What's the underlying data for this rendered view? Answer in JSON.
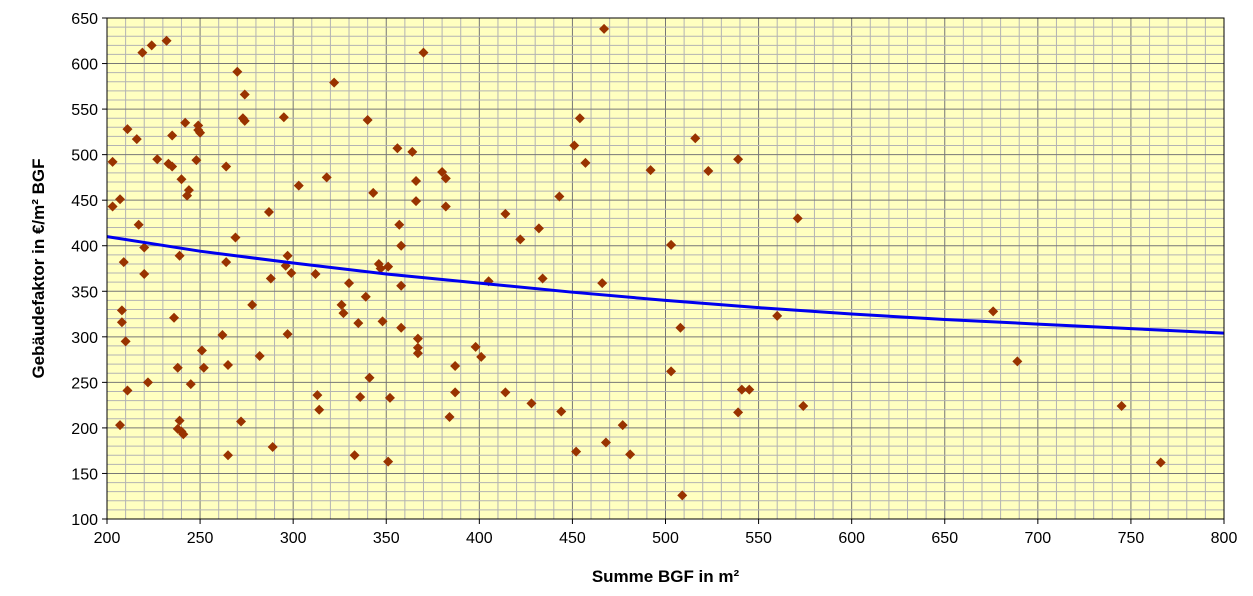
{
  "chart_data": {
    "type": "scatter",
    "xlabel": "Summe BGF in m²",
    "ylabel": "Gebäudefaktor in €/m² BGF",
    "xlim": [
      200,
      800
    ],
    "ylim": [
      100,
      650
    ],
    "x_ticks": [
      "200",
      "250",
      "300",
      "350",
      "400",
      "450",
      "500",
      "550",
      "600",
      "650",
      "700",
      "750",
      "800"
    ],
    "y_ticks": [
      "100",
      "150",
      "200",
      "250",
      "300",
      "350",
      "400",
      "450",
      "500",
      "550",
      "600",
      "650"
    ],
    "grid": true,
    "plot_background": "#ffffc0",
    "marker_color": "#993300",
    "trend_color": "#0000ee",
    "trend": [
      {
        "x": 200,
        "y": 410
      },
      {
        "x": 250,
        "y": 394
      },
      {
        "x": 300,
        "y": 381
      },
      {
        "x": 350,
        "y": 369
      },
      {
        "x": 400,
        "y": 359
      },
      {
        "x": 450,
        "y": 349
      },
      {
        "x": 500,
        "y": 340
      },
      {
        "x": 550,
        "y": 332
      },
      {
        "x": 600,
        "y": 325
      },
      {
        "x": 650,
        "y": 319
      },
      {
        "x": 700,
        "y": 314
      },
      {
        "x": 750,
        "y": 309
      },
      {
        "x": 800,
        "y": 304
      }
    ],
    "points": [
      {
        "x": 203,
        "y": 492
      },
      {
        "x": 203,
        "y": 443
      },
      {
        "x": 207,
        "y": 451
      },
      {
        "x": 207,
        "y": 203
      },
      {
        "x": 208,
        "y": 329
      },
      {
        "x": 208,
        "y": 316
      },
      {
        "x": 209,
        "y": 382
      },
      {
        "x": 210,
        "y": 295
      },
      {
        "x": 211,
        "y": 528
      },
      {
        "x": 211,
        "y": 241
      },
      {
        "x": 216,
        "y": 517
      },
      {
        "x": 217,
        "y": 423
      },
      {
        "x": 219,
        "y": 612
      },
      {
        "x": 220,
        "y": 398
      },
      {
        "x": 220,
        "y": 369
      },
      {
        "x": 222,
        "y": 250
      },
      {
        "x": 224,
        "y": 620
      },
      {
        "x": 227,
        "y": 495
      },
      {
        "x": 232,
        "y": 625
      },
      {
        "x": 233,
        "y": 490
      },
      {
        "x": 235,
        "y": 521
      },
      {
        "x": 235,
        "y": 487
      },
      {
        "x": 236,
        "y": 321
      },
      {
        "x": 238,
        "y": 266
      },
      {
        "x": 238,
        "y": 199
      },
      {
        "x": 239,
        "y": 389
      },
      {
        "x": 239,
        "y": 208
      },
      {
        "x": 240,
        "y": 473
      },
      {
        "x": 240,
        "y": 196
      },
      {
        "x": 241,
        "y": 193
      },
      {
        "x": 242,
        "y": 535
      },
      {
        "x": 243,
        "y": 455
      },
      {
        "x": 244,
        "y": 461
      },
      {
        "x": 245,
        "y": 248
      },
      {
        "x": 248,
        "y": 494
      },
      {
        "x": 249,
        "y": 532
      },
      {
        "x": 249,
        "y": 527
      },
      {
        "x": 250,
        "y": 524
      },
      {
        "x": 251,
        "y": 285
      },
      {
        "x": 252,
        "y": 266
      },
      {
        "x": 262,
        "y": 302
      },
      {
        "x": 264,
        "y": 487
      },
      {
        "x": 264,
        "y": 382
      },
      {
        "x": 265,
        "y": 269
      },
      {
        "x": 265,
        "y": 170
      },
      {
        "x": 269,
        "y": 409
      },
      {
        "x": 270,
        "y": 591
      },
      {
        "x": 272,
        "y": 207
      },
      {
        "x": 273,
        "y": 540
      },
      {
        "x": 274,
        "y": 537
      },
      {
        "x": 274,
        "y": 566
      },
      {
        "x": 278,
        "y": 335
      },
      {
        "x": 282,
        "y": 279
      },
      {
        "x": 287,
        "y": 437
      },
      {
        "x": 288,
        "y": 364
      },
      {
        "x": 289,
        "y": 179
      },
      {
        "x": 295,
        "y": 541
      },
      {
        "x": 296,
        "y": 378
      },
      {
        "x": 297,
        "y": 389
      },
      {
        "x": 297,
        "y": 303
      },
      {
        "x": 299,
        "y": 370
      },
      {
        "x": 303,
        "y": 466
      },
      {
        "x": 312,
        "y": 369
      },
      {
        "x": 313,
        "y": 236
      },
      {
        "x": 314,
        "y": 220
      },
      {
        "x": 318,
        "y": 475
      },
      {
        "x": 322,
        "y": 579
      },
      {
        "x": 326,
        "y": 335
      },
      {
        "x": 327,
        "y": 326
      },
      {
        "x": 330,
        "y": 359
      },
      {
        "x": 333,
        "y": 170
      },
      {
        "x": 335,
        "y": 315
      },
      {
        "x": 336,
        "y": 234
      },
      {
        "x": 339,
        "y": 344
      },
      {
        "x": 340,
        "y": 538
      },
      {
        "x": 341,
        "y": 255
      },
      {
        "x": 343,
        "y": 458
      },
      {
        "x": 346,
        "y": 380
      },
      {
        "x": 347,
        "y": 375
      },
      {
        "x": 348,
        "y": 317
      },
      {
        "x": 351,
        "y": 377
      },
      {
        "x": 351,
        "y": 163
      },
      {
        "x": 352,
        "y": 233
      },
      {
        "x": 356,
        "y": 507
      },
      {
        "x": 357,
        "y": 423
      },
      {
        "x": 358,
        "y": 400
      },
      {
        "x": 358,
        "y": 356
      },
      {
        "x": 358,
        "y": 310
      },
      {
        "x": 364,
        "y": 503
      },
      {
        "x": 366,
        "y": 471
      },
      {
        "x": 366,
        "y": 449
      },
      {
        "x": 367,
        "y": 298
      },
      {
        "x": 367,
        "y": 288
      },
      {
        "x": 367,
        "y": 282
      },
      {
        "x": 370,
        "y": 612
      },
      {
        "x": 380,
        "y": 481
      },
      {
        "x": 382,
        "y": 474
      },
      {
        "x": 382,
        "y": 443
      },
      {
        "x": 384,
        "y": 212
      },
      {
        "x": 387,
        "y": 268
      },
      {
        "x": 387,
        "y": 239
      },
      {
        "x": 398,
        "y": 289
      },
      {
        "x": 401,
        "y": 278
      },
      {
        "x": 405,
        "y": 361
      },
      {
        "x": 414,
        "y": 435
      },
      {
        "x": 414,
        "y": 239
      },
      {
        "x": 422,
        "y": 407
      },
      {
        "x": 428,
        "y": 227
      },
      {
        "x": 432,
        "y": 419
      },
      {
        "x": 434,
        "y": 364
      },
      {
        "x": 443,
        "y": 454
      },
      {
        "x": 444,
        "y": 218
      },
      {
        "x": 451,
        "y": 510
      },
      {
        "x": 452,
        "y": 174
      },
      {
        "x": 454,
        "y": 540
      },
      {
        "x": 457,
        "y": 491
      },
      {
        "x": 466,
        "y": 359
      },
      {
        "x": 467,
        "y": 638
      },
      {
        "x": 468,
        "y": 184
      },
      {
        "x": 477,
        "y": 203
      },
      {
        "x": 481,
        "y": 171
      },
      {
        "x": 492,
        "y": 483
      },
      {
        "x": 503,
        "y": 401
      },
      {
        "x": 503,
        "y": 262
      },
      {
        "x": 508,
        "y": 310
      },
      {
        "x": 509,
        "y": 126
      },
      {
        "x": 516,
        "y": 518
      },
      {
        "x": 523,
        "y": 482
      },
      {
        "x": 539,
        "y": 495
      },
      {
        "x": 539,
        "y": 217
      },
      {
        "x": 541,
        "y": 242
      },
      {
        "x": 545,
        "y": 242
      },
      {
        "x": 560,
        "y": 323
      },
      {
        "x": 571,
        "y": 430
      },
      {
        "x": 574,
        "y": 224
      },
      {
        "x": 676,
        "y": 328
      },
      {
        "x": 689,
        "y": 273
      },
      {
        "x": 745,
        "y": 224
      },
      {
        "x": 766,
        "y": 162
      }
    ]
  }
}
